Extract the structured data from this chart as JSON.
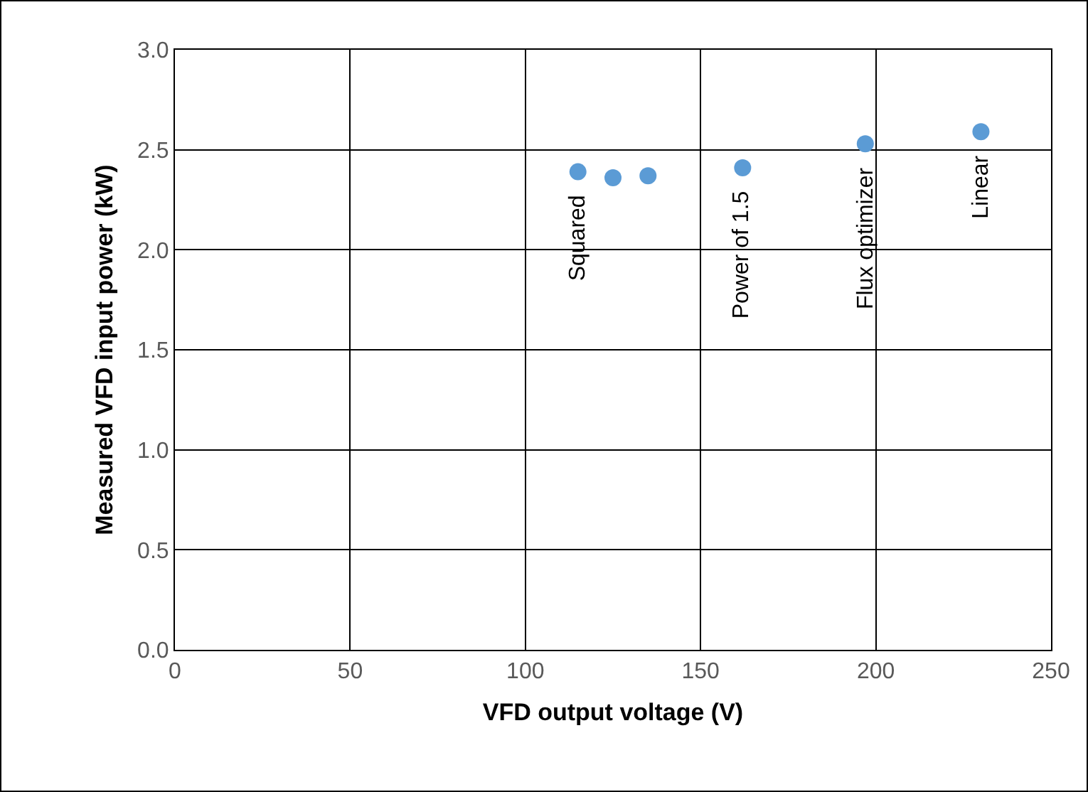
{
  "chart_data": {
    "type": "scatter",
    "xlabel": "VFD output voltage (V)",
    "ylabel": "Measured VFD input power (kW)",
    "x": [
      115,
      125,
      135,
      162,
      197,
      230
    ],
    "series": [
      {
        "color": "#5b9bd5",
        "values": [
          2.39,
          2.36,
          2.37,
          2.41,
          2.53,
          2.59
        ]
      }
    ],
    "xlim": [
      0,
      250
    ],
    "xticks": [
      0,
      50,
      100,
      150,
      200,
      250
    ],
    "ylim": [
      0,
      3
    ],
    "yticks": [
      {
        "value": 0,
        "label": "0.0"
      },
      {
        "value": 0.5,
        "label": "0.5"
      },
      {
        "value": 1,
        "label": "1.0"
      },
      {
        "value": 1.5,
        "label": "1.5"
      },
      {
        "value": 2,
        "label": "2.0"
      },
      {
        "value": 2.5,
        "label": "2.5"
      },
      {
        "value": 3,
        "label": "3.0"
      }
    ],
    "annotations": [
      {
        "text": "Squared",
        "x": 115,
        "y": 2.39
      },
      {
        "text": "Power of 1.5",
        "x": 162,
        "y": 2.41
      },
      {
        "text": "Flux optimizer",
        "x": 197,
        "y": 2.53
      },
      {
        "text": "Linear",
        "x": 230,
        "y": 2.59
      }
    ],
    "grid": true,
    "marker": "circle"
  }
}
